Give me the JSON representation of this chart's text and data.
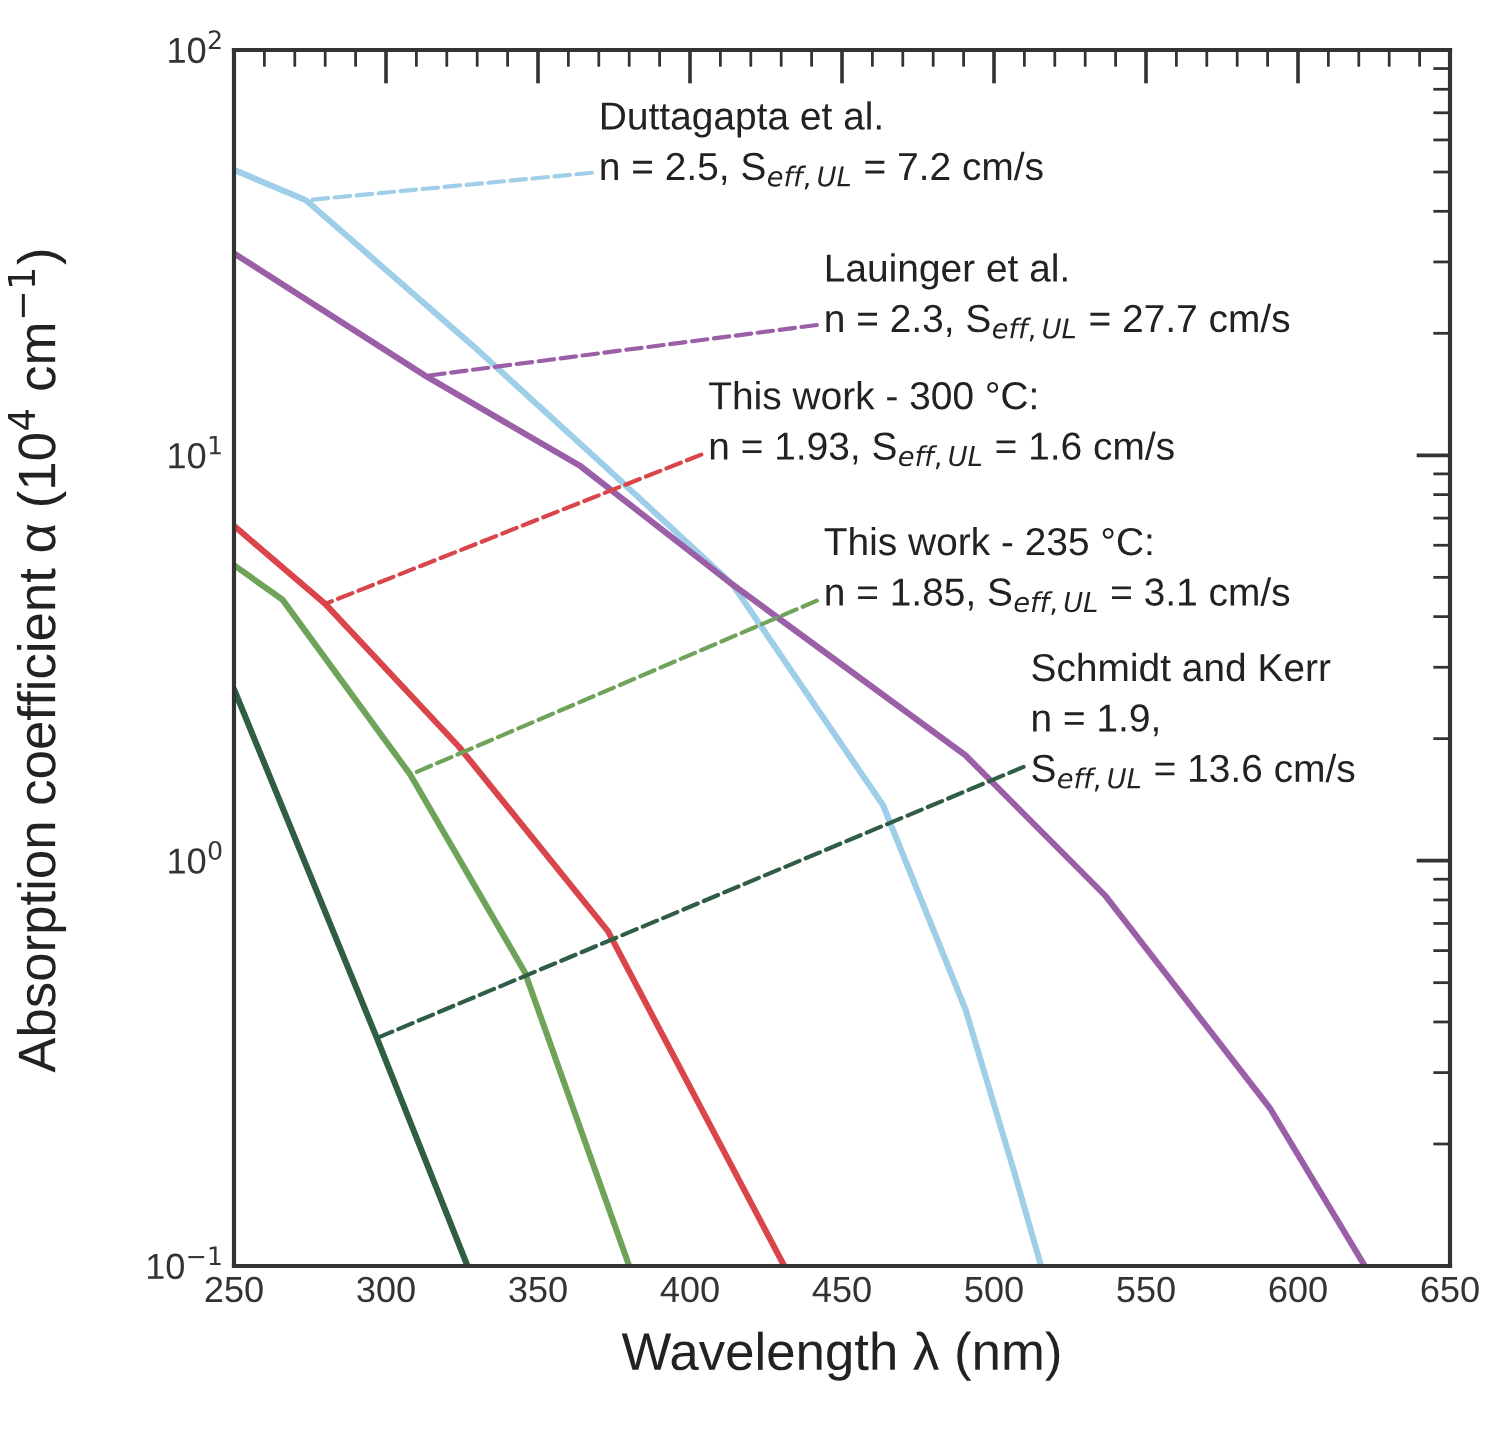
{
  "chart_data": {
    "type": "line",
    "xlabel": "Wavelength λ (nm)",
    "ylabel": "Absorption coefficient α (10$^{4}$ cm$^{−1}$)",
    "log": "y",
    "grid": false,
    "xlim": [
      250,
      650
    ],
    "xticks": [
      250,
      300,
      350,
      400,
      450,
      500,
      550,
      600,
      650
    ],
    "ylim": [
      0.1,
      100
    ],
    "yticks": [
      {
        "value": 0.1,
        "label": "10$^{−1}$"
      },
      {
        "value": 1,
        "label": "10$^{0}$"
      },
      {
        "value": 10,
        "label": "10$^{1}$"
      },
      {
        "value": 100,
        "label": "10$^{2}$"
      }
    ],
    "series": [
      {
        "color": "#9fcfe8",
        "x": [
          250,
          273.7,
          328.7,
          372,
          414,
          463.5,
          490.6,
          506.8,
          515.5
        ],
        "values": [
          50.6,
          42.6,
          18.6,
          9.4,
          4.8,
          1.37,
          0.43,
          0.169,
          0.1
        ]
      },
      {
        "color": "#9b5fa8",
        "x": [
          250,
          313,
          364,
          414,
          490.6,
          536.6,
          590.8,
          622
        ],
        "values": [
          31.5,
          15.7,
          9.4,
          4.8,
          1.82,
          0.82,
          0.245,
          0.1
        ]
      },
      {
        "color": "#d9454a",
        "x": [
          250,
          280,
          324,
          373,
          431
        ],
        "values": [
          6.7,
          4.3,
          1.91,
          0.67,
          0.1
        ]
      },
      {
        "color": "#6fa35a",
        "x": [
          250,
          266,
          308,
          345.7,
          380
        ],
        "values": [
          5.36,
          4.4,
          1.63,
          0.53,
          0.1
        ]
      },
      {
        "color": "#2f5e45",
        "x": [
          250,
          297,
          326.8
        ],
        "values": [
          2.65,
          0.365,
          0.1
        ]
      }
    ],
    "annotations": [
      {
        "text": "Duttagapta et al.\nn = 2.5, S$_{eff,UL}$ = 7.2 cm/s",
        "x": 273.7,
        "y": 42.6
      },
      {
        "text": "Lauinger et al.\nn = 2.3, S$_{eff,UL}$ = 27.7 cm/s",
        "x": 313,
        "y": 15.7
      },
      {
        "text": "This work - 300 °C:\nn = 1.93, S$_{eff,UL}$ = 1.6 cm/s",
        "x": 280,
        "y": 4.3
      },
      {
        "text": "This work - 235 °C:\nn = 1.85, S$_{eff,UL}$ = 3.1 cm/s",
        "x": 308,
        "y": 1.63
      },
      {
        "text": "Schmidt and Kerr\nn = 1.9,\nS$_{eff,UL}$ = 13.6 cm/s",
        "x": 297,
        "y": 0.365
      }
    ]
  }
}
